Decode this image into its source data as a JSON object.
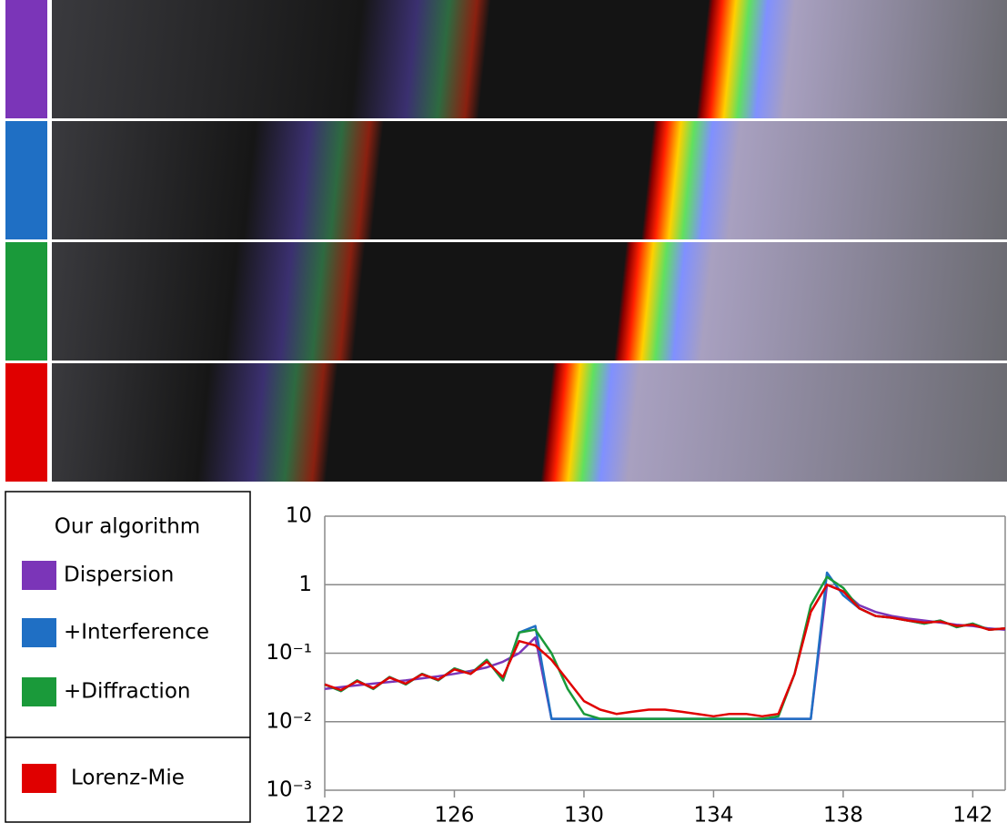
{
  "chart_data": {
    "type": "line",
    "log_y": true,
    "grid": true,
    "legend_title": "Our algorithm",
    "legend_position": "left",
    "xlim": [
      122,
      143
    ],
    "xticks": [
      122,
      126,
      130,
      134,
      138,
      142
    ],
    "ylim": [
      0.001,
      10
    ],
    "yticks": [
      {
        "value": 10,
        "label": "10"
      },
      {
        "value": 1,
        "label": "1"
      },
      {
        "value": 0.1,
        "label": "10⁻¹"
      },
      {
        "value": 0.01,
        "label": "10⁻²"
      },
      {
        "value": 0.001,
        "label": "10⁻³"
      }
    ],
    "x": [
      122,
      122.5,
      123,
      123.5,
      124,
      124.5,
      125,
      125.5,
      126,
      126.5,
      127,
      127.5,
      128,
      128.5,
      129,
      129.5,
      130,
      130.5,
      131,
      131.5,
      132,
      132.5,
      133,
      133.5,
      134,
      134.5,
      135,
      135.5,
      136,
      136.5,
      137,
      137.5,
      138,
      138.5,
      139,
      139.5,
      140,
      140.5,
      141,
      141.5,
      142,
      142.5,
      143
    ],
    "series": [
      {
        "name": "Dispersion",
        "color": "#7b35b8",
        "values": [
          0.03,
          0.032,
          0.034,
          0.036,
          0.038,
          0.04,
          0.043,
          0.046,
          0.05,
          0.055,
          0.062,
          0.075,
          0.1,
          0.17,
          0.011,
          0.011,
          0.011,
          0.011,
          0.011,
          0.011,
          0.011,
          0.011,
          0.011,
          0.011,
          0.011,
          0.011,
          0.011,
          0.011,
          0.011,
          0.011,
          0.011,
          1.0,
          0.8,
          0.5,
          0.4,
          0.35,
          0.32,
          0.3,
          0.28,
          0.26,
          0.25,
          0.23,
          0.22
        ]
      },
      {
        "name": "+Interference",
        "color": "#1f6fc4",
        "values": [
          0.035,
          0.028,
          0.04,
          0.03,
          0.045,
          0.035,
          0.05,
          0.04,
          0.06,
          0.05,
          0.08,
          0.04,
          0.2,
          0.25,
          0.011,
          0.011,
          0.011,
          0.011,
          0.011,
          0.011,
          0.011,
          0.011,
          0.011,
          0.011,
          0.011,
          0.011,
          0.011,
          0.011,
          0.011,
          0.011,
          0.011,
          1.5,
          0.7,
          0.45,
          0.35,
          0.33,
          0.3,
          0.27,
          0.3,
          0.24,
          0.27,
          0.22,
          0.23
        ]
      },
      {
        "name": "+Diffraction",
        "color": "#1a9a3a",
        "values": [
          0.035,
          0.028,
          0.04,
          0.03,
          0.045,
          0.035,
          0.05,
          0.04,
          0.06,
          0.05,
          0.08,
          0.04,
          0.2,
          0.22,
          0.1,
          0.03,
          0.013,
          0.011,
          0.011,
          0.011,
          0.011,
          0.011,
          0.011,
          0.011,
          0.011,
          0.011,
          0.011,
          0.011,
          0.012,
          0.05,
          0.5,
          1.3,
          0.9,
          0.45,
          0.35,
          0.33,
          0.3,
          0.27,
          0.3,
          0.24,
          0.27,
          0.22,
          0.23
        ]
      },
      {
        "name": "Lorenz-Mie",
        "color": "#e00000",
        "values": [
          0.035,
          0.029,
          0.039,
          0.031,
          0.044,
          0.036,
          0.049,
          0.041,
          0.058,
          0.05,
          0.075,
          0.045,
          0.15,
          0.13,
          0.08,
          0.04,
          0.02,
          0.015,
          0.013,
          0.014,
          0.015,
          0.015,
          0.014,
          0.013,
          0.012,
          0.013,
          0.013,
          0.012,
          0.013,
          0.05,
          0.4,
          1.0,
          0.8,
          0.45,
          0.35,
          0.33,
          0.3,
          0.28,
          0.29,
          0.25,
          0.26,
          0.22,
          0.23
        ]
      }
    ]
  }
}
